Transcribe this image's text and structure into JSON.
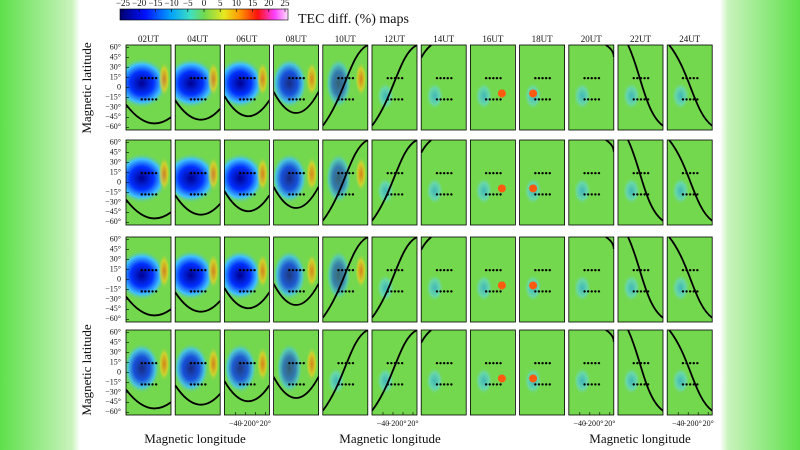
{
  "figure": {
    "colorbar": {
      "title": "TEC diff. (%) maps",
      "clim": [
        -25,
        25
      ],
      "ticks": [
        {
          "value": -25,
          "label": "−25"
        },
        {
          "value": -20,
          "label": "−20"
        },
        {
          "value": -15,
          "label": "−15"
        },
        {
          "value": -10,
          "label": "−10"
        },
        {
          "value": -5,
          "label": "−5"
        },
        0,
        5,
        10,
        15,
        20,
        25
      ]
    },
    "columns": [
      "02UT",
      "04UT",
      "06UT",
      "08UT",
      "10UT",
      "12UT",
      "14UT",
      "16UT",
      "18UT",
      "20UT",
      "22UT",
      "24UT"
    ],
    "y_label": "Magnetic latitude",
    "ylim": [
      -64,
      64
    ],
    "yticks": [
      {
        "value": 60,
        "label": "60°"
      },
      {
        "value": 45,
        "label": "45°"
      },
      {
        "value": 30,
        "label": "30°"
      },
      {
        "value": 15,
        "label": "15°"
      },
      0,
      {
        "value": -15,
        "label": "−15°"
      },
      {
        "value": -30,
        "label": "−30°"
      },
      {
        "value": -45,
        "label": "−45°"
      },
      {
        "value": -60,
        "label": "−60°"
      }
    ],
    "x_label": "Magnetic longitude",
    "xlim": [
      -62,
      28
    ],
    "xticks": [
      {
        "value": -40,
        "label": "−40"
      },
      {
        "value": -20,
        "label": "−20"
      },
      {
        "value": 0,
        "label": "0°"
      },
      {
        "value": 20,
        "label": "20°"
      }
    ]
  }
}
